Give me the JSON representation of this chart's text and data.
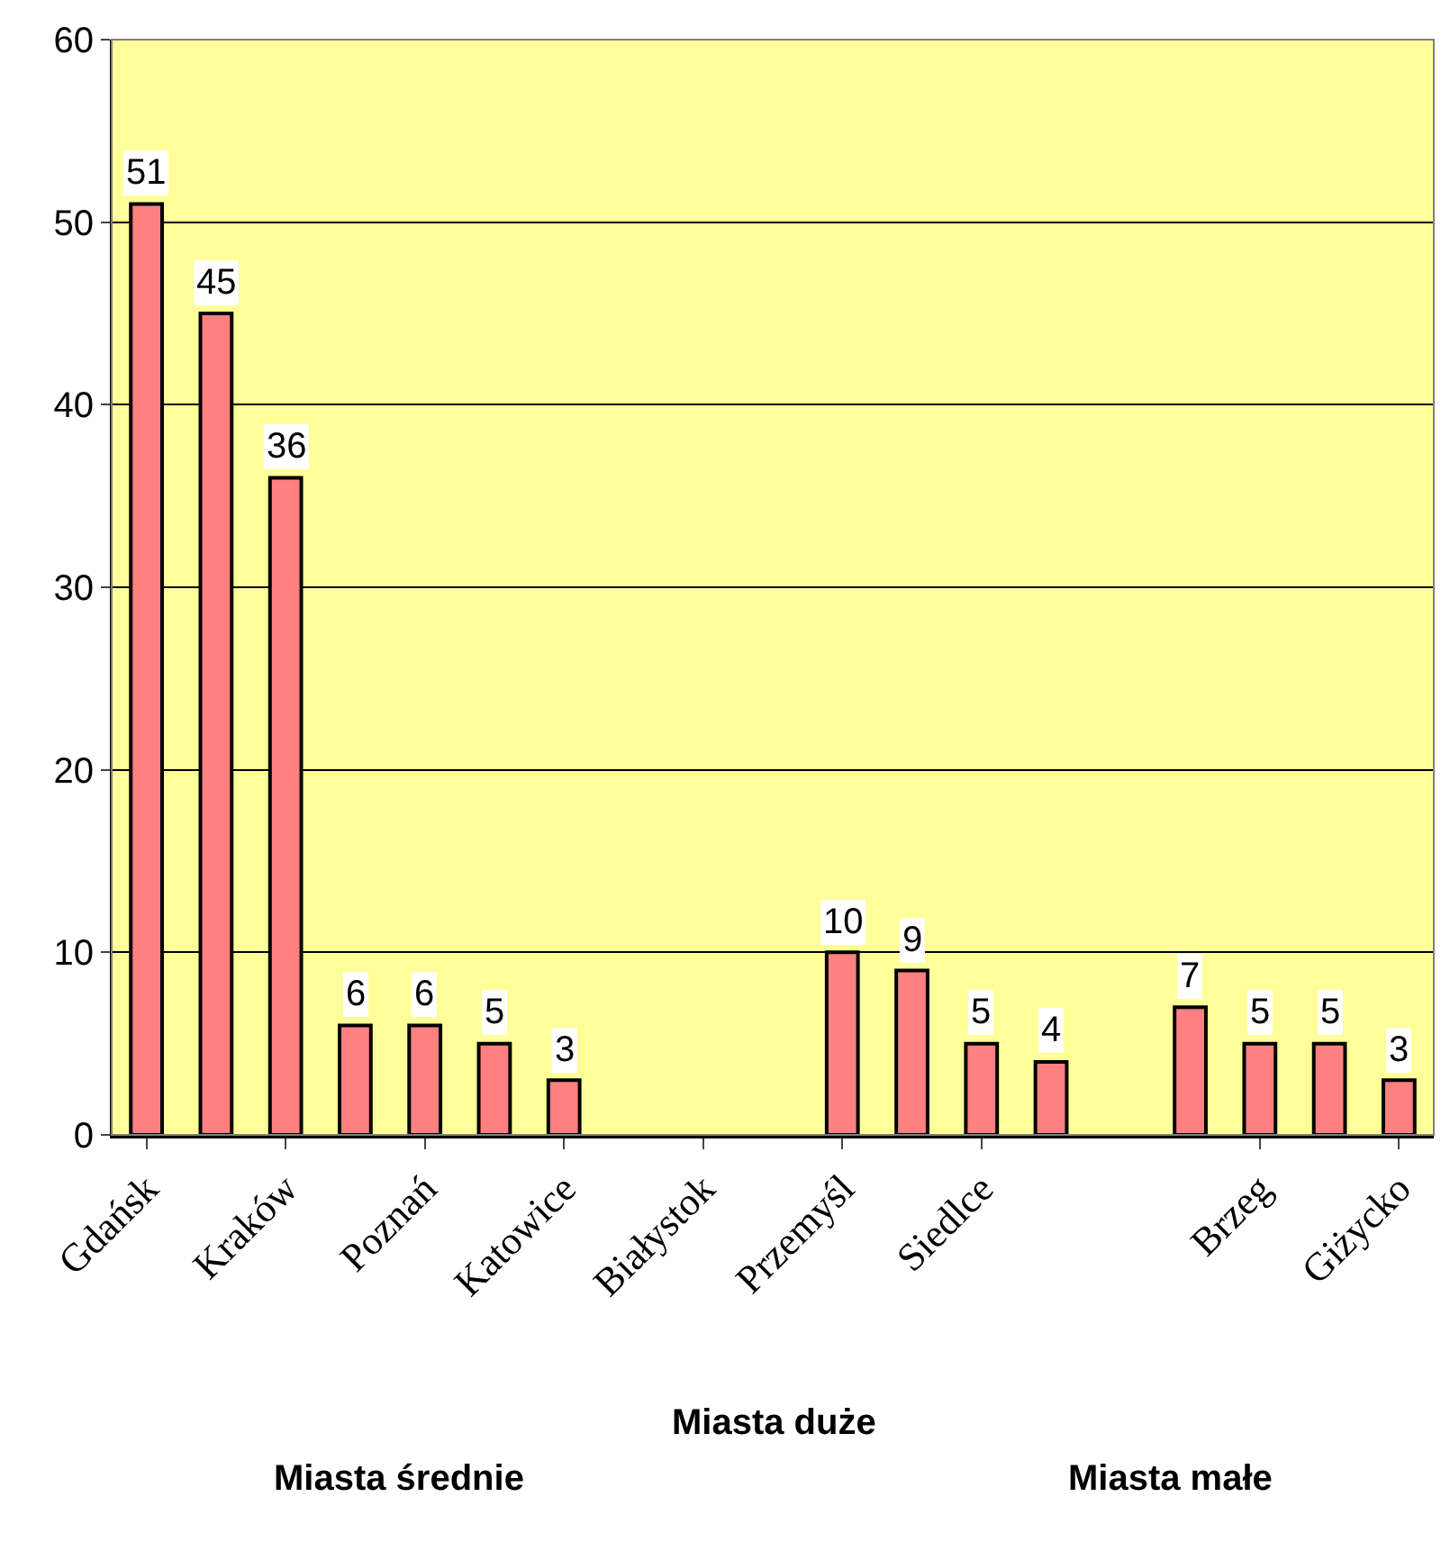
{
  "chart_data": {
    "type": "bar",
    "categories": [
      "Gdańsk",
      null,
      "Kraków",
      null,
      "Poznań",
      null,
      "Katowice",
      null,
      "Białystok",
      null,
      "Przemyśl",
      null,
      "Siedlce",
      null,
      null,
      null,
      "Brzeg",
      null,
      "Giżycko"
    ],
    "values": [
      51,
      45,
      36,
      6,
      6,
      5,
      3,
      null,
      null,
      null,
      10,
      9,
      5,
      4,
      null,
      7,
      5,
      5,
      3
    ],
    "color": "#ff8080",
    "ylim": [
      0,
      60
    ],
    "yticks": [
      0,
      10,
      20,
      30,
      40,
      50,
      60
    ],
    "grid": "y",
    "data_labels": true,
    "annotations": [
      "Miasta duże",
      "Miasta średnie",
      "Miasta małe"
    ]
  }
}
